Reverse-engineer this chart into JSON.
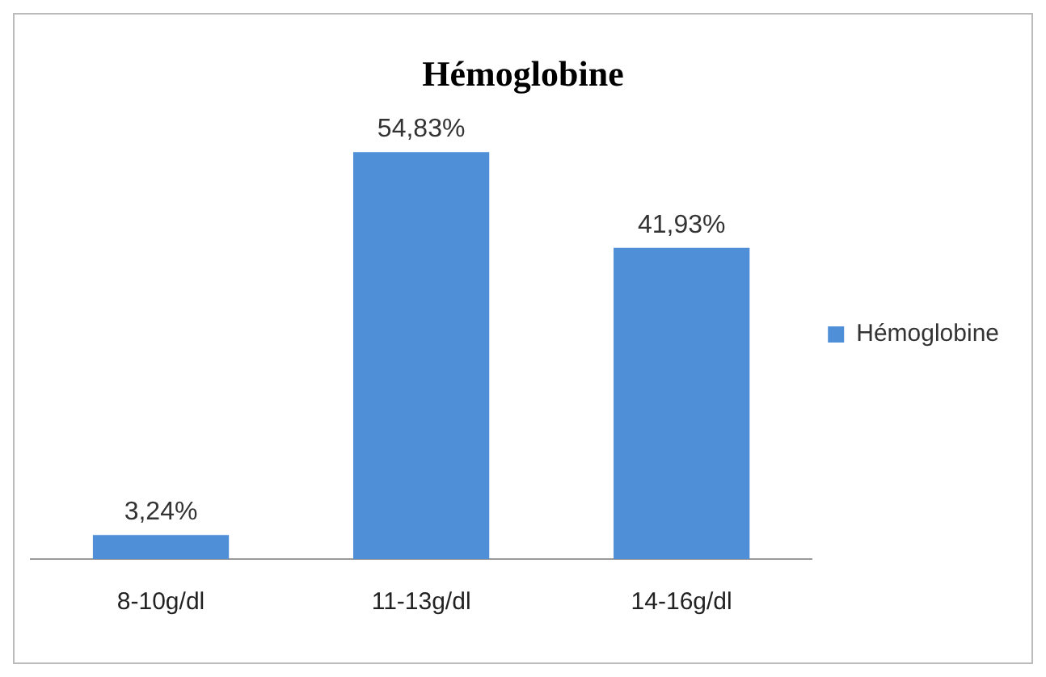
{
  "chart_data": {
    "type": "bar",
    "title": "Hémoglobine",
    "categories": [
      "8-10g/dl",
      "11-13g/dl",
      "14-16g/dl"
    ],
    "series": [
      {
        "name": "Hémoglobine",
        "color": "#4f8fd8",
        "values": [
          3.24,
          54.83,
          41.93
        ],
        "value_labels": [
          "3,24%",
          "54,83%",
          "41,93%"
        ]
      }
    ],
    "tick_labels": "x",
    "grid": false,
    "legend": "right"
  }
}
